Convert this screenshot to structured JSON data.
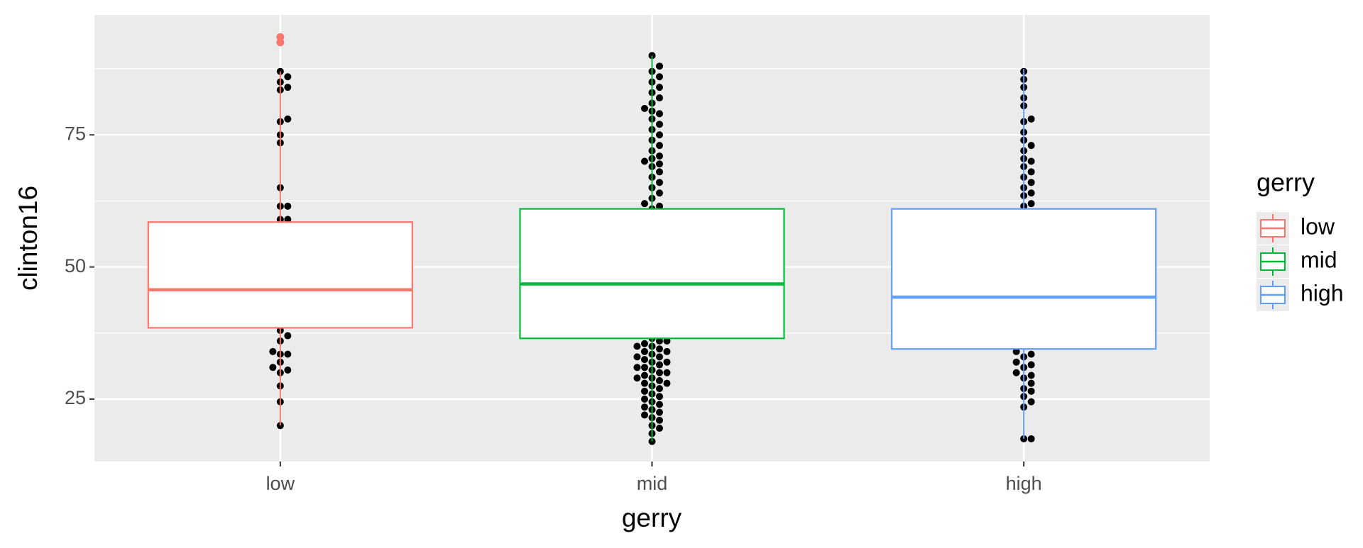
{
  "chart_data": {
    "type": "boxplot",
    "x_label": "gerry",
    "y_label": "clinton16",
    "legend_title": "gerry",
    "categories": [
      "low",
      "mid",
      "high"
    ],
    "boxes": [
      {
        "name": "low",
        "color": "#F8766D",
        "whisker_low": 20,
        "q1": 38.5,
        "median": 45.7,
        "q3": 58.5,
        "whisker_high": 87,
        "outliers": [
          92.5,
          93.5
        ]
      },
      {
        "name": "mid",
        "color": "#00BA38",
        "whisker_low": 17,
        "q1": 36.5,
        "median": 46.8,
        "q3": 61,
        "whisker_high": 90
      },
      {
        "name": "high",
        "color": "#619CFF",
        "whisker_low": 17.5,
        "q1": 34.5,
        "median": 44.3,
        "q3": 61,
        "whisker_high": 87.5
      }
    ],
    "points": [
      [
        20,
        24.5,
        27.5,
        30,
        30.5,
        31,
        32,
        33.5,
        33.5,
        34,
        36,
        37,
        38,
        59,
        59,
        61.5,
        61.5,
        65,
        73.5,
        75,
        77.5,
        78,
        83.5,
        84,
        85,
        86,
        87
      ],
      [
        17,
        18.5,
        19.5,
        20,
        21,
        21.5,
        22,
        22.5,
        23,
        23.5,
        24,
        24.5,
        25,
        25.5,
        26,
        26.5,
        27,
        27.5,
        28,
        28,
        28.5,
        29,
        29,
        29.5,
        30,
        30,
        30.5,
        31,
        31,
        31.5,
        32,
        32,
        32.5,
        33,
        33,
        33.5,
        34,
        34,
        34.5,
        35,
        35,
        35.5,
        36,
        36,
        36.5,
        61,
        61.5,
        62,
        63,
        64,
        65,
        66,
        67,
        68,
        69,
        69.5,
        70,
        70.5,
        71,
        72,
        73,
        74,
        75,
        76,
        77,
        78,
        79,
        79.5,
        80,
        81,
        82,
        83,
        84,
        85,
        86,
        87,
        88,
        90
      ],
      [
        17.5,
        17.5,
        23.5,
        24.5,
        25.5,
        26.5,
        27,
        28,
        29,
        29.5,
        30,
        31,
        31.5,
        32,
        33,
        33.5,
        34,
        61.5,
        62,
        63.5,
        64,
        65,
        66,
        67,
        68,
        69,
        70,
        70.5,
        72,
        73,
        74,
        75.5,
        77.5,
        78,
        80.5,
        82,
        84,
        85.5,
        87
      ]
    ],
    "point_color": "#000000",
    "ylim": [
      13.2,
      97.7
    ],
    "yticks": [
      25,
      50,
      75
    ],
    "minor_yticks": [
      37.5,
      62.5,
      87.5
    ],
    "grid": true
  }
}
